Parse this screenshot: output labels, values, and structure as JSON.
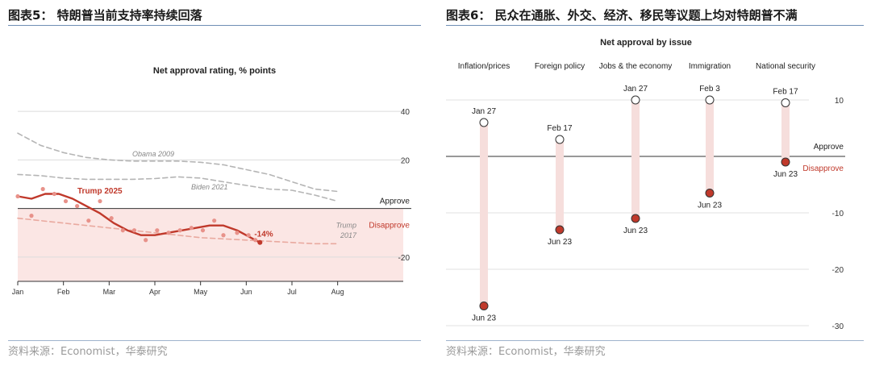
{
  "left": {
    "figure_title": "图表5： 特朗普当前支持率持续回落",
    "source": "资料来源：Economist，华泰研究",
    "chart_data": {
      "type": "line",
      "title": "Net approval rating, % points",
      "ylim": [
        -30,
        45
      ],
      "yticks": [
        40,
        20,
        -20
      ],
      "x_ticks": [
        "Jan",
        "Feb",
        "Mar",
        "Apr",
        "May",
        "Jun",
        "Jul",
        "Aug"
      ],
      "x_tick_pos": [
        0,
        1,
        2,
        3,
        4,
        5,
        6,
        7
      ],
      "xlim": [
        0,
        7.2
      ],
      "zero_labels": {
        "above": "Approve",
        "below": "Disapprove"
      },
      "colors": {
        "trump2025": "#c0392b",
        "shade": "#fbe6e4",
        "prior": "#b5b5b5",
        "trump2017": "#e9a99f"
      },
      "series": [
        {
          "name": "Trump 2025",
          "style": "solid",
          "x": [
            0,
            0.3,
            0.6,
            0.9,
            1.2,
            1.5,
            1.8,
            2.1,
            2.4,
            2.7,
            3.0,
            3.3,
            3.6,
            3.9,
            4.2,
            4.5,
            4.8,
            5.1,
            5.3
          ],
          "y": [
            5,
            4,
            6,
            6,
            4,
            1,
            -2,
            -6,
            -9,
            -11,
            -11,
            -10,
            -9,
            -8,
            -7,
            -7,
            -9,
            -12,
            -14
          ]
        },
        {
          "name": "Obama 2009",
          "style": "dashed",
          "x": [
            0,
            0.5,
            1,
            1.5,
            2,
            2.5,
            3,
            3.5,
            4,
            4.5,
            5,
            5.5,
            6,
            6.5,
            7
          ],
          "y": [
            31,
            26,
            23,
            21,
            20,
            19.5,
            19.5,
            19.5,
            19,
            18,
            16,
            14,
            11,
            8,
            7
          ]
        },
        {
          "name": "Biden 2021",
          "style": "dashed",
          "x": [
            0,
            0.5,
            1,
            1.5,
            2,
            2.5,
            3,
            3.5,
            4,
            4.5,
            5,
            5.5,
            6,
            6.5,
            7
          ],
          "y": [
            14,
            13.5,
            12.5,
            12,
            12,
            12,
            12.3,
            13,
            12.5,
            11,
            9.5,
            8,
            7.5,
            5.5,
            3
          ]
        },
        {
          "name": "Trump 2017",
          "style": "dashed",
          "x": [
            0,
            0.5,
            1,
            1.5,
            2,
            2.5,
            3,
            3.5,
            4,
            4.5,
            5,
            5.5,
            6,
            6.5,
            7
          ],
          "y": [
            -4,
            -5,
            -6,
            -7,
            -8,
            -9,
            -10,
            -11,
            -12,
            -12.5,
            -13,
            -13.5,
            -14,
            -14.5,
            -14.5
          ]
        }
      ],
      "points": {
        "x": [
          0,
          0.3,
          0.55,
          0.8,
          1.05,
          1.3,
          1.55,
          1.8,
          2.05,
          2.3,
          2.55,
          2.8,
          3.05,
          3.3,
          3.55,
          3.8,
          4.05,
          4.3,
          4.5,
          4.8,
          5.05,
          5.2
        ],
        "y": [
          5,
          -3,
          8,
          6,
          3,
          1,
          -5,
          3,
          -4,
          -9,
          -9,
          -13,
          -9,
          -10,
          -9,
          -8,
          -9,
          -5,
          -11,
          -10,
          -11,
          -13
        ]
      },
      "series_labels": {
        "trump2025": "Trump 2025",
        "obama": "Obama 2009",
        "biden": "Biden 2021",
        "trump2017_a": "Trump",
        "trump2017_b": "2017"
      },
      "end_label": "-14%"
    }
  },
  "right": {
    "figure_title": "图表6： 民众在通胀、外交、经济、移民等议题上均对特朗普不满",
    "source": "资料来源：Economist，华泰研究",
    "chart_data": {
      "type": "dumbbell",
      "title": "Net approval by issue",
      "ylim": [
        -31,
        14
      ],
      "yticks": [
        10,
        -10,
        -20,
        -30
      ],
      "zero_labels": {
        "above": "Approve",
        "below": "Disapprove"
      },
      "colors": {
        "bar": "#f6dedc",
        "end": "#c0392b",
        "zero": "#333333"
      },
      "categories": [
        "Inflation/prices",
        "Foreign policy",
        "Jobs & the economy",
        "Immigration",
        "National security"
      ],
      "start_labels": [
        "Jan 27",
        "Feb 17",
        "Jan 27",
        "Feb 3",
        "Feb 17"
      ],
      "start": [
        6,
        3,
        10,
        10,
        9.5
      ],
      "end_labels": [
        "Jun 23",
        "Jun 23",
        "Jun 23",
        "Jun 23",
        "Jun 23"
      ],
      "end": [
        -26.5,
        -13,
        -11,
        -6.5,
        -1
      ]
    }
  }
}
